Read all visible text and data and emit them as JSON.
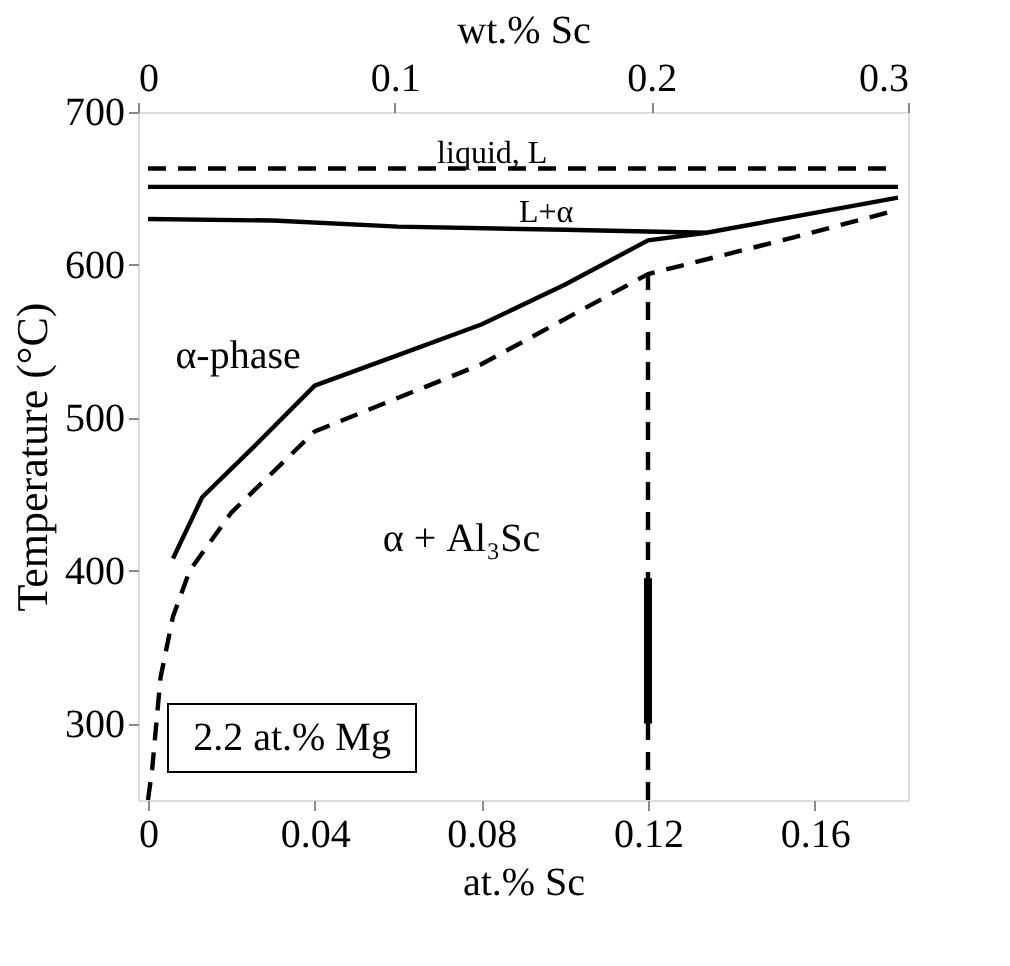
{
  "chart_data": {
    "type": "line",
    "xlabel": "at.% Sc",
    "ylabel": "Temperature (°C)",
    "x2label": "wt.% Sc",
    "xlim": [
      0,
      0.18
    ],
    "xticks": [
      0,
      0.04,
      0.08,
      0.12,
      0.16
    ],
    "x2lim": [
      0,
      0.3
    ],
    "x2ticks": [
      0,
      0.1,
      0.2,
      0.3
    ],
    "ylim": [
      250,
      700
    ],
    "yticks": [
      300,
      400,
      500,
      600,
      700
    ],
    "grid": false,
    "marker": "none",
    "series": [
      {
        "color": "#000000",
        "line_style": "dashed",
        "x": [
          0,
          0.18
        ],
        "values": [
          663,
          663
        ]
      },
      {
        "color": "#000000",
        "line_style": "solid",
        "x": [
          0,
          0.18
        ],
        "values": [
          651,
          651
        ]
      },
      {
        "color": "#000000",
        "line_style": "solid",
        "x": [
          0,
          0.03,
          0.06,
          0.1,
          0.134
        ],
        "values": [
          630,
          629,
          625,
          623,
          621
        ]
      },
      {
        "color": "#000000",
        "line_style": "solid",
        "x": [
          0.006,
          0.013,
          0.025,
          0.04,
          0.06,
          0.08,
          0.1,
          0.12,
          0.134,
          0.16,
          0.18
        ],
        "values": [
          408,
          448,
          480,
          521,
          541,
          561,
          587,
          616,
          621,
          634,
          644
        ]
      },
      {
        "color": "#000000",
        "line_style": "dashed",
        "x": [
          0,
          0.001,
          0.003,
          0.006,
          0.01,
          0.02,
          0.04,
          0.08,
          0.12,
          0.155,
          0.18
        ],
        "values": [
          250,
          270,
          330,
          370,
          400,
          438,
          491,
          535,
          594,
          618,
          636
        ]
      },
      {
        "color": "#000000",
        "line_style": "dashed",
        "x": [
          0.12,
          0.12
        ],
        "values": [
          250,
          594
        ]
      },
      {
        "type": "bar",
        "color": "#000000",
        "x": [
          0.12
        ],
        "base": [
          300
        ],
        "values": [
          95
        ]
      }
    ],
    "annotations": [
      "liquid, L",
      "L+α",
      "α-phase",
      "α + Al₃Sc",
      "2.2 at.% Mg"
    ]
  }
}
